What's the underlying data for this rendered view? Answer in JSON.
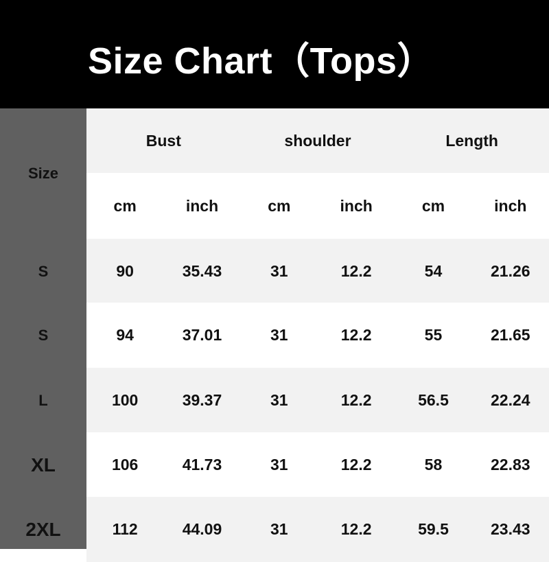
{
  "title": "Size Chart（Tops）",
  "headers": {
    "size": "Size",
    "groups": [
      "Bust",
      "shoulder",
      "Length"
    ],
    "units": [
      "cm",
      "inch",
      "cm",
      "inch",
      "cm",
      "inch"
    ]
  },
  "rows": [
    {
      "size": "S",
      "values": [
        "90",
        "35.43",
        "31",
        "12.2",
        "54",
        "21.26"
      ]
    },
    {
      "size": "S",
      "values": [
        "94",
        "37.01",
        "31",
        "12.2",
        "55",
        "21.65"
      ]
    },
    {
      "size": "L",
      "values": [
        "100",
        "39.37",
        "31",
        "12.2",
        "56.5",
        "22.24"
      ]
    },
    {
      "size": "XL",
      "values": [
        "106",
        "41.73",
        "31",
        "12.2",
        "58",
        "22.83"
      ]
    },
    {
      "size": "2XL",
      "values": [
        "112",
        "44.09",
        "31",
        "12.2",
        "59.5",
        "23.43"
      ]
    }
  ],
  "colors": {
    "title_bg": "#000000",
    "size_col": "#606060",
    "row_alt": "#f2f2f2"
  }
}
